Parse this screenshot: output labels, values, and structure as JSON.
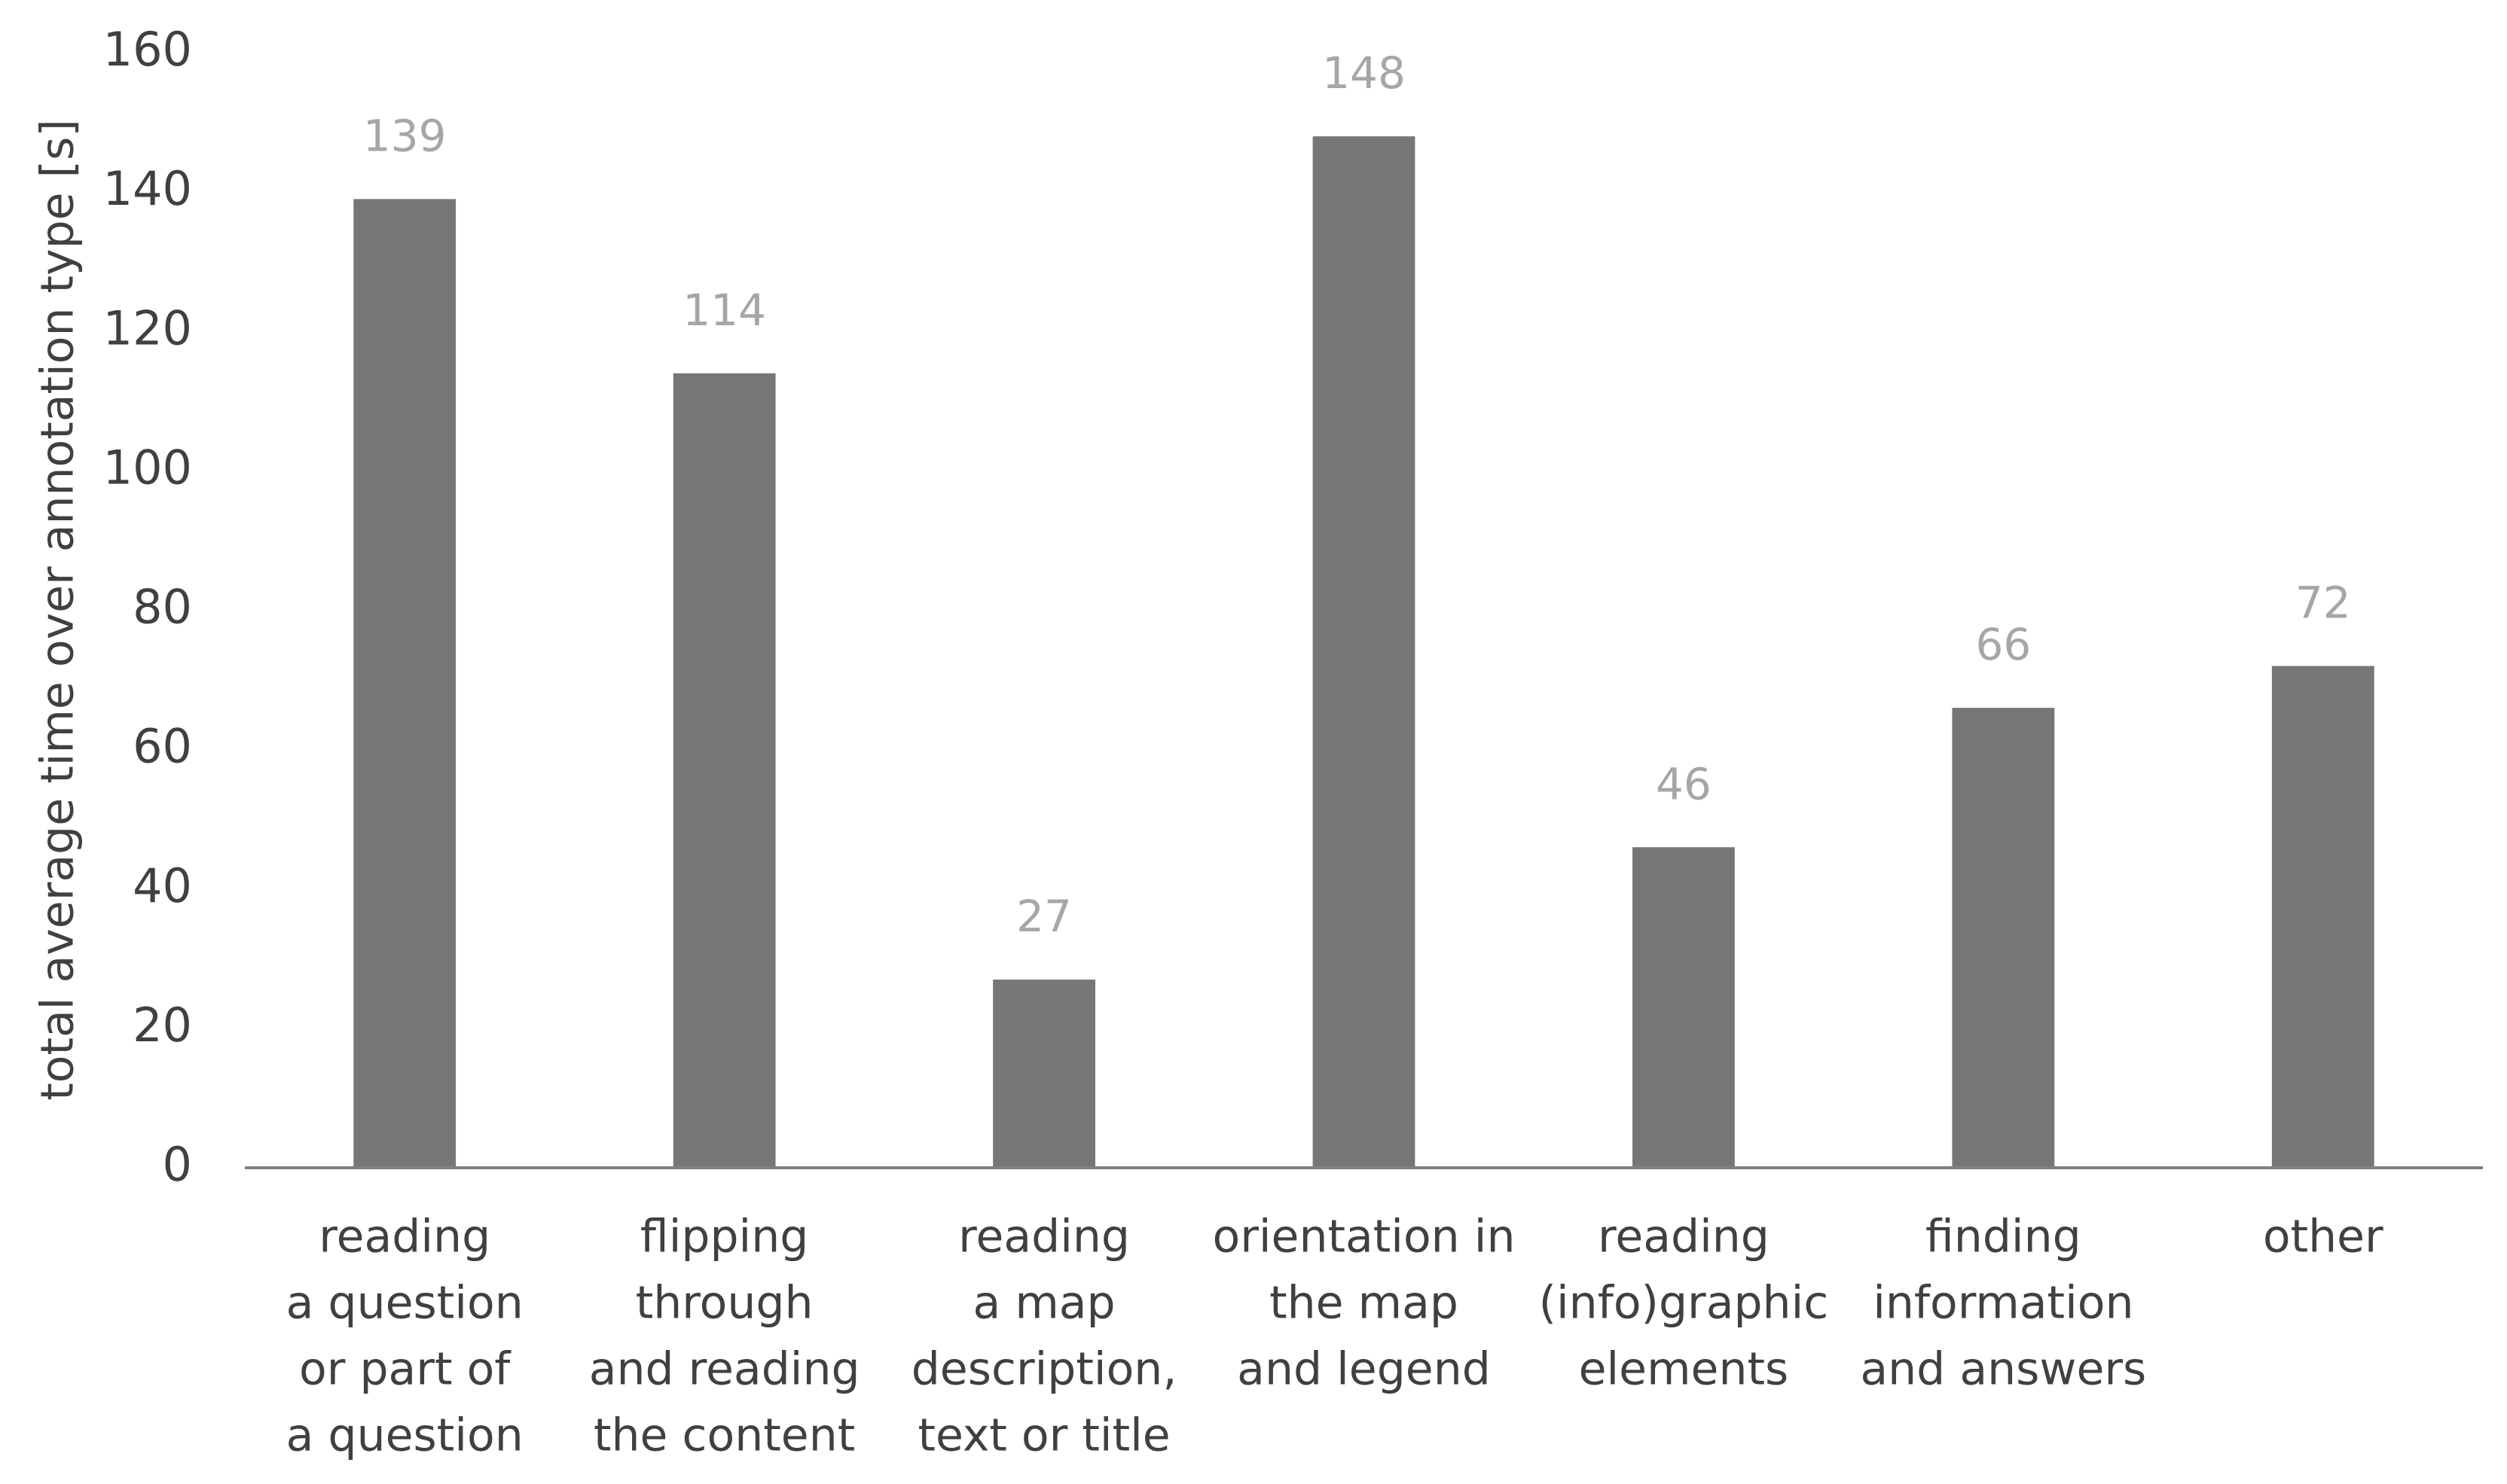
{
  "chart_data": {
    "type": "bar",
    "y_label": "total average time over annotation type [s]",
    "categories": [
      [
        "reading",
        "a question",
        "or part of",
        "a question"
      ],
      [
        "flipping",
        "through",
        "and reading",
        "the content"
      ],
      [
        "reading",
        "a map",
        "description,",
        "text or title"
      ],
      [
        "orientation in",
        "the map",
        "and legend"
      ],
      [
        "reading",
        "(info)graphic",
        "elements"
      ],
      [
        "finding",
        "information",
        "and answers"
      ],
      [
        "other"
      ]
    ],
    "values": [
      139,
      114,
      27,
      148,
      46,
      66,
      72
    ],
    "color": "#767676",
    "label_color": "#a6a6a6",
    "ylim": [
      0,
      160
    ],
    "yticks": [
      0,
      20,
      40,
      60,
      80,
      100,
      120,
      140,
      160
    ],
    "grid": false
  }
}
